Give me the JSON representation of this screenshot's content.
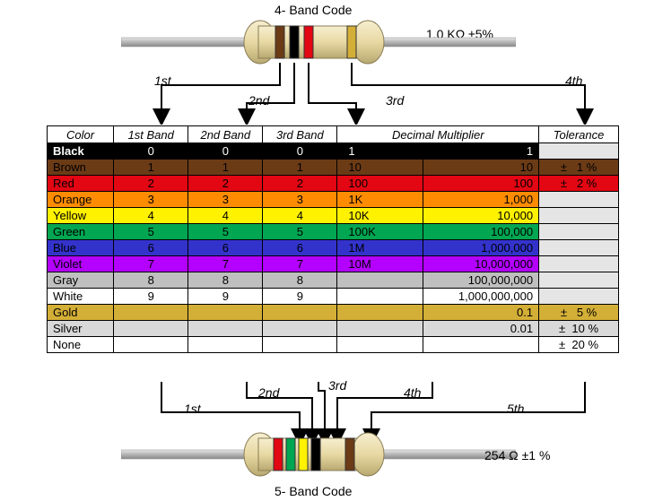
{
  "top": {
    "title": "4- Band Code",
    "value": "1.0 KΩ  ±5%",
    "labels": [
      "1st",
      "2nd",
      "3rd",
      "4th"
    ],
    "bands": [
      "#6b3b16",
      "#000000",
      "#e30613",
      "#d4af37"
    ]
  },
  "bottom": {
    "title": "5- Band Code",
    "value": "254 Ω  ±1 %",
    "labels": [
      "1st",
      "2nd",
      "3rd",
      "4th",
      "5th"
    ],
    "bands": [
      "#e30613",
      "#00a651",
      "#fff200",
      "#000000",
      "#6b3b16"
    ]
  },
  "columns": [
    "Color",
    "1st Band",
    "2nd Band",
    "3rd Band",
    "Decimal Multiplier",
    "Tolerance"
  ],
  "rows": [
    {
      "name": "Black",
      "bg": "#000000",
      "fg": "#ffffff",
      "d": "0",
      "mL": "1",
      "mR": "1",
      "tol": ""
    },
    {
      "name": "Brown",
      "bg": "#6b3b16",
      "fg": "#000000",
      "d": "1",
      "mL": "10",
      "mR": "10",
      "tol": "±   1 %"
    },
    {
      "name": "Red",
      "bg": "#e30613",
      "fg": "#000000",
      "d": "2",
      "mL": "100",
      "mR": "100",
      "tol": "±   2 %"
    },
    {
      "name": "Orange",
      "bg": "#ff8c00",
      "fg": "#000000",
      "d": "3",
      "mL": "1K",
      "mR": "1,000",
      "tol": ""
    },
    {
      "name": "Yellow",
      "bg": "#fff200",
      "fg": "#000000",
      "d": "4",
      "mL": "10K",
      "mR": "10,000",
      "tol": ""
    },
    {
      "name": "Green",
      "bg": "#00a651",
      "fg": "#000000",
      "d": "5",
      "mL": "100K",
      "mR": "100,000",
      "tol": ""
    },
    {
      "name": "Blue",
      "bg": "#3333cc",
      "fg": "#000000",
      "d": "6",
      "mL": "1M",
      "mR": "1,000,000",
      "tol": ""
    },
    {
      "name": "Violet",
      "bg": "#b300ff",
      "fg": "#000000",
      "d": "7",
      "mL": "10M",
      "mR": "10,000,000",
      "tol": ""
    },
    {
      "name": "Gray",
      "bg": "#bfbfbf",
      "fg": "#000000",
      "d": "8",
      "mL": "",
      "mR": "100,000,000",
      "tol": ""
    },
    {
      "name": "White",
      "bg": "#ffffff",
      "fg": "#000000",
      "d": "9",
      "mL": "",
      "mR": "1,000,000,000",
      "tol": ""
    },
    {
      "name": "Gold",
      "bg": "#d4af37",
      "fg": "#000000",
      "d": "",
      "mL": "",
      "mR": "0.1",
      "tol": "±   5 %"
    },
    {
      "name": "Silver",
      "bg": "#d9d9d9",
      "fg": "#000000",
      "d": "",
      "mL": "",
      "mR": "0.01",
      "tol": "±  10 %"
    },
    {
      "name": "None",
      "bg": "#ffffff",
      "fg": "#000000",
      "d": "",
      "mL": "",
      "mR": "",
      "tol": "±  20 %"
    }
  ],
  "colWidths": {
    "name": 70,
    "band": 80,
    "multL": 80,
    "multR": 120,
    "tol": 85
  },
  "tolNoneBg": "#e5e5e5",
  "resistor": {
    "wire": "#b5b5b5",
    "wireEdge": "#8a8a8a",
    "bodyLight": "#f2e7c6",
    "bodyDark": "#c9bb8f",
    "bodyEdge": "#8a7d55"
  }
}
